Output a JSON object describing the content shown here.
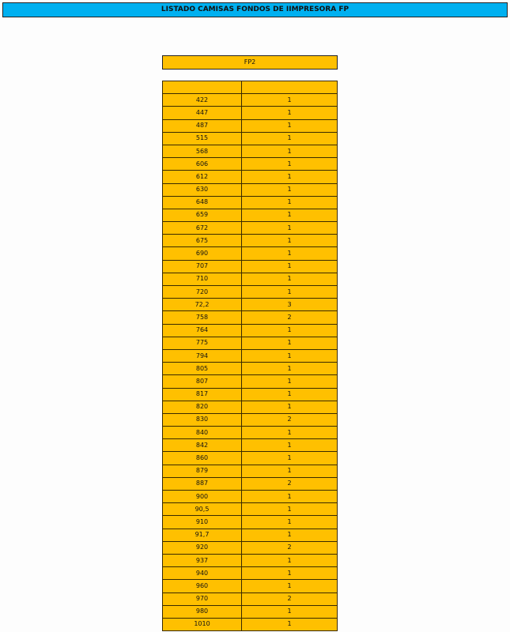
{
  "title": "LISTADO CAMISAS FONDOS DE IIMPRESORA FP",
  "section": "FP2",
  "colors": {
    "banner": "#00b0f0",
    "table": "#ffc000"
  },
  "table": {
    "headers": [
      "",
      ""
    ],
    "rows": [
      [
        "422",
        "1"
      ],
      [
        "447",
        "1"
      ],
      [
        "487",
        "1"
      ],
      [
        "515",
        "1"
      ],
      [
        "568",
        "1"
      ],
      [
        "606",
        "1"
      ],
      [
        "612",
        "1"
      ],
      [
        "630",
        "1"
      ],
      [
        "648",
        "1"
      ],
      [
        "659",
        "1"
      ],
      [
        "672",
        "1"
      ],
      [
        "675",
        "1"
      ],
      [
        "690",
        "1"
      ],
      [
        "707",
        "1"
      ],
      [
        "710",
        "1"
      ],
      [
        "720",
        "1"
      ],
      [
        "72,2",
        "3"
      ],
      [
        "758",
        "2"
      ],
      [
        "764",
        "1"
      ],
      [
        "775",
        "1"
      ],
      [
        "794",
        "1"
      ],
      [
        "805",
        "1"
      ],
      [
        "807",
        "1"
      ],
      [
        "817",
        "1"
      ],
      [
        "820",
        "1"
      ],
      [
        "830",
        "2"
      ],
      [
        "840",
        "1"
      ],
      [
        "842",
        "1"
      ],
      [
        "860",
        "1"
      ],
      [
        "879",
        "1"
      ],
      [
        "887",
        "2"
      ],
      [
        "900",
        "1"
      ],
      [
        "90,5",
        "1"
      ],
      [
        "910",
        "1"
      ],
      [
        "91,7",
        "1"
      ],
      [
        "920",
        "2"
      ],
      [
        "937",
        "1"
      ],
      [
        "940",
        "1"
      ],
      [
        "960",
        "1"
      ],
      [
        "970",
        "2"
      ],
      [
        "980",
        "1"
      ],
      [
        "1010",
        "1"
      ]
    ]
  }
}
